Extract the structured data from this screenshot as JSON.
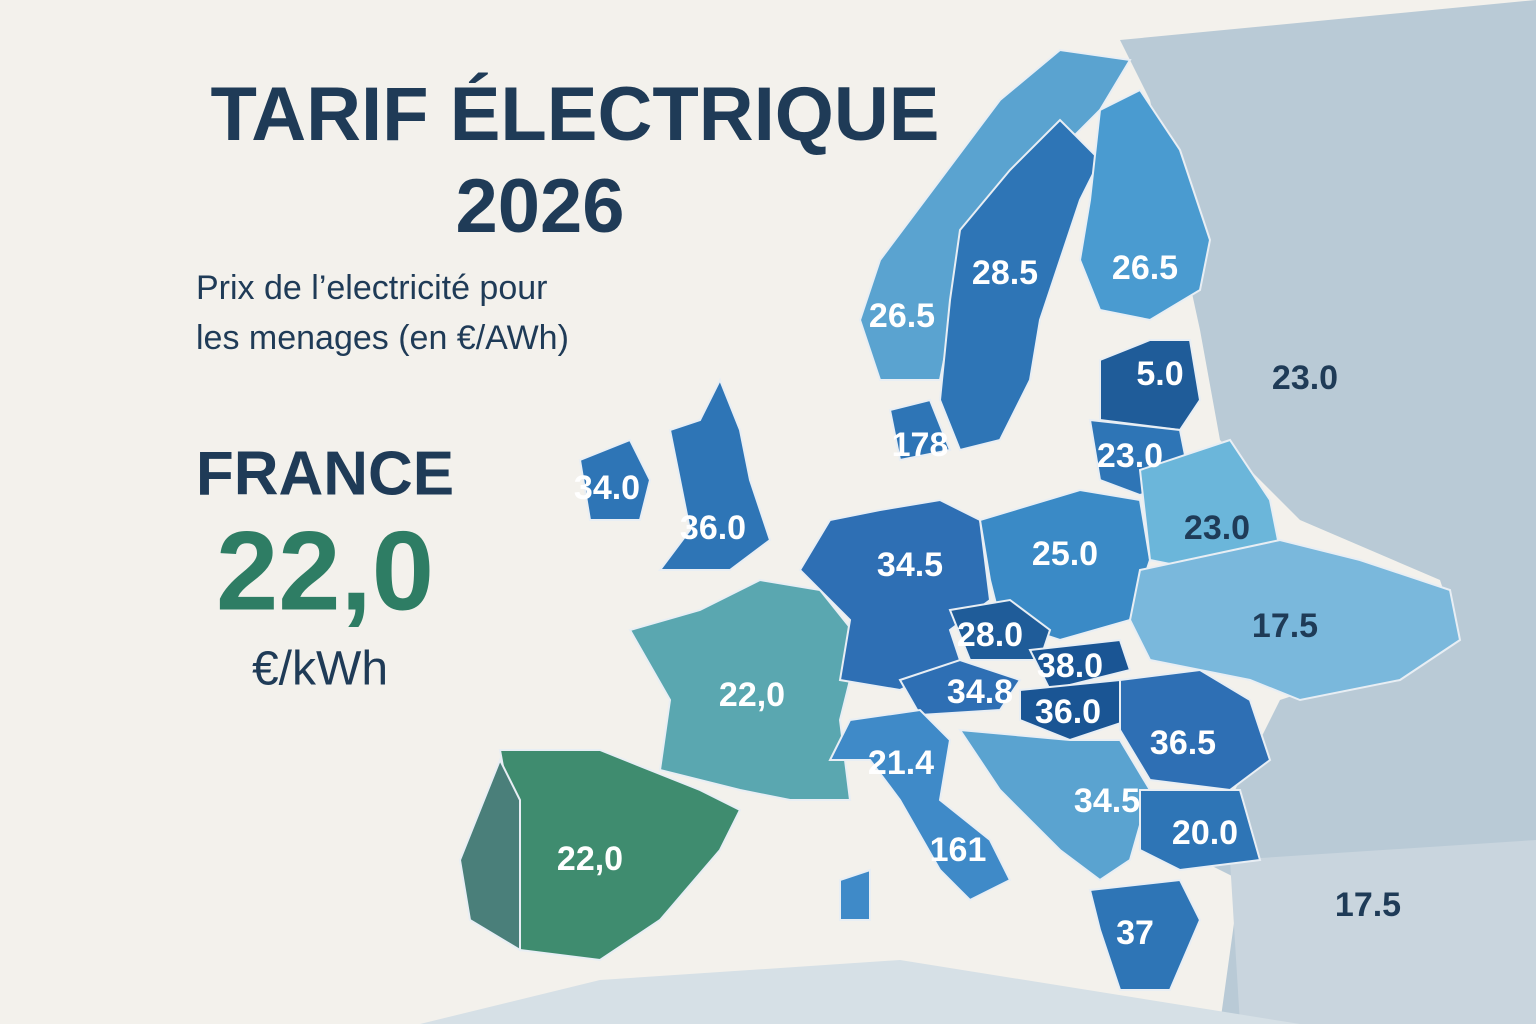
{
  "title": "TARIF ÉLECTRIQUE",
  "year": "2026",
  "subtitle": [
    "Prix de l’electricité pour",
    "les menages (en €/AWh)"
  ],
  "highlight": {
    "country": "FRANCE",
    "value": "22,0",
    "unit": "€/kWh"
  },
  "region_labels": [
    "26.5",
    "28.5",
    "26.5",
    "23.0",
    "5.0",
    "23.0",
    "178",
    "34.0",
    "36.0",
    "34.5",
    "25.0",
    "23.0",
    "17.5",
    "28.0",
    "38.0",
    "34.8",
    "36.0",
    "36.5",
    "22,0",
    "22,0",
    "21.4",
    "161",
    "34.5",
    "20.0",
    "37",
    "17.5"
  ]
}
